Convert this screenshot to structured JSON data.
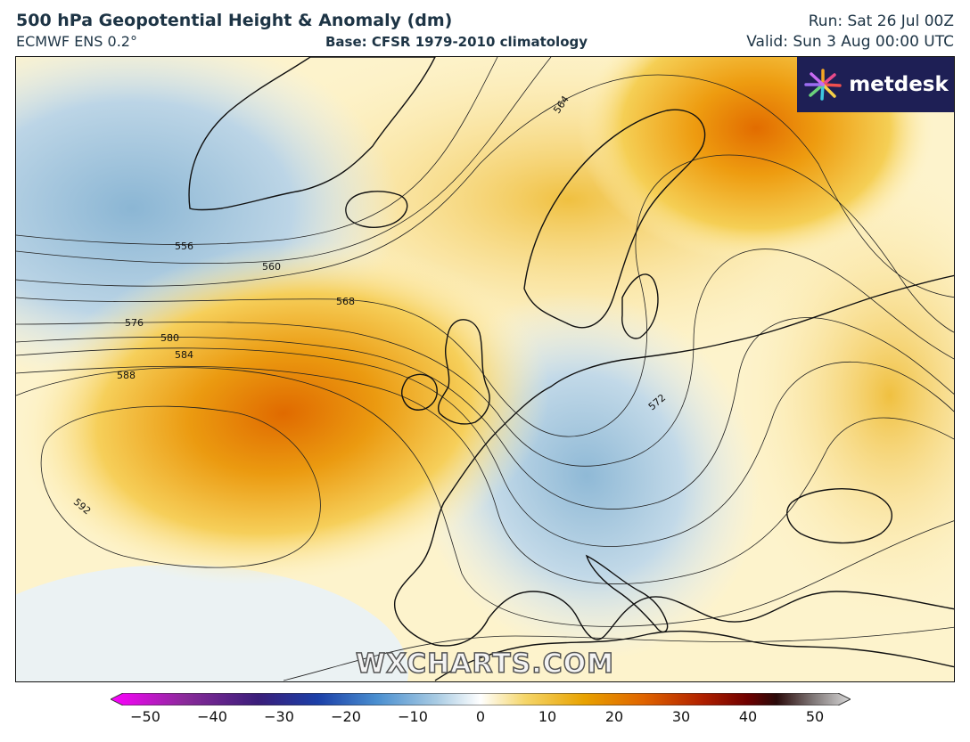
{
  "header": {
    "title": "500 hPa Geopotential Height & Anomaly (dm)",
    "model": "ECMWF ENS 0.2°",
    "base": "Base: CFSR 1979-2010 climatology",
    "run": "Run: Sat 26 Jul 00Z",
    "valid": "Valid: Sun 3 Aug 00:00 UTC"
  },
  "brand": {
    "logo_text": "metdesk",
    "watermark": "WXCHARTS.COM"
  },
  "contour_labels": [
    "556",
    "560",
    "564",
    "568",
    "572",
    "576",
    "580",
    "584",
    "588",
    "592"
  ],
  "colorbar": {
    "ticks": [
      "−50",
      "−40",
      "−30",
      "−20",
      "−10",
      "0",
      "10",
      "20",
      "30",
      "40",
      "50"
    ],
    "range": [
      -50,
      50
    ]
  },
  "colors": {
    "positive_anomaly": "#e8a500",
    "strong_positive": "#e07000",
    "negative_anomaly": "#a8c8de",
    "neutral": "#fffbe6",
    "logo_bg": "#1e1f55"
  }
}
